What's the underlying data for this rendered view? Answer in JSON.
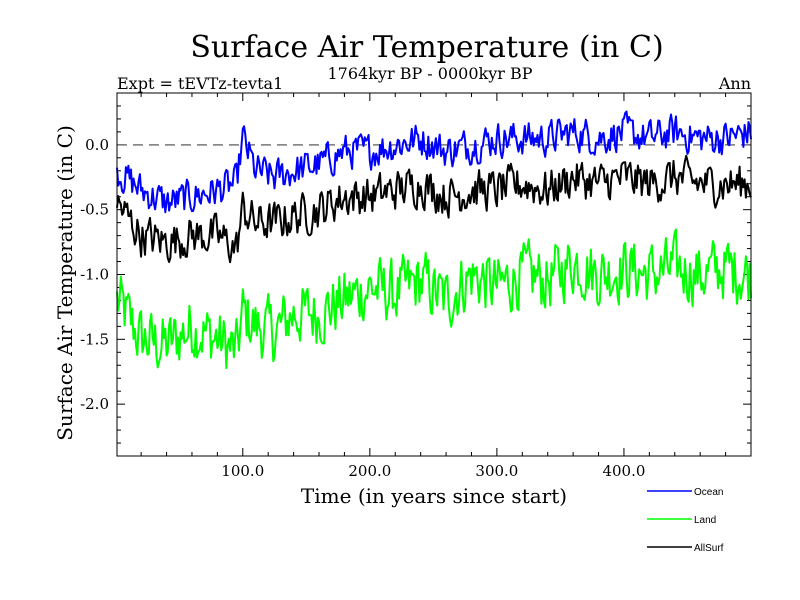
{
  "chart_data": {
    "type": "line",
    "title": "Surface Air Temperature (in C)",
    "subtitle": "1764kyr BP - 0000kyr BP",
    "expt_label": "Expt = tEVTz-tevta1",
    "season_label": "Ann",
    "xlabel": "Time (in years since start)",
    "ylabel": "Surface Air Temperature (in C)",
    "xlim": [
      1,
      500
    ],
    "ylim": [
      -2.4,
      0.4
    ],
    "x_ticks": [
      100,
      200,
      300,
      400
    ],
    "x_tick_labels": [
      "100.0",
      "200.0",
      "300.0",
      "400.0"
    ],
    "y_ticks": [
      0.0,
      -0.5,
      -1.0,
      -1.5,
      -2.0
    ],
    "y_tick_labels": [
      "0.0",
      "-0.5",
      "-1.0",
      "-1.5",
      "-2.0"
    ],
    "reference_line": 0.0,
    "x": [
      1,
      20,
      40,
      60,
      80,
      95,
      100,
      110,
      125,
      140,
      160,
      180,
      200,
      220,
      240,
      260,
      280,
      300,
      320,
      340,
      360,
      380,
      400,
      420,
      440,
      460,
      480,
      500
    ],
    "series": [
      {
        "name": "Ocean",
        "color": "#0000ff",
        "values": [
          -0.2,
          -0.35,
          -0.45,
          -0.4,
          -0.35,
          -0.3,
          0.05,
          -0.2,
          -0.25,
          -0.2,
          -0.15,
          -0.05,
          -0.05,
          0.0,
          0.05,
          -0.05,
          0.0,
          0.05,
          0.05,
          0.05,
          0.1,
          0.05,
          0.1,
          0.05,
          0.1,
          0.05,
          0.05,
          0.1
        ]
      },
      {
        "name": "Land",
        "color": "#00ff00",
        "values": [
          -1.2,
          -1.5,
          -1.55,
          -1.4,
          -1.5,
          -1.6,
          -1.3,
          -1.4,
          -1.45,
          -1.3,
          -1.3,
          -1.2,
          -1.1,
          -1.15,
          -1.05,
          -1.2,
          -1.0,
          -1.1,
          -1.0,
          -1.05,
          -0.9,
          -1.0,
          -0.95,
          -1.0,
          -0.95,
          -1.0,
          -0.95,
          -1.0
        ]
      },
      {
        "name": "AllSurf",
        "color": "#000000",
        "values": [
          -0.45,
          -0.7,
          -0.75,
          -0.7,
          -0.7,
          -0.8,
          -0.5,
          -0.6,
          -0.6,
          -0.55,
          -0.5,
          -0.4,
          -0.4,
          -0.35,
          -0.3,
          -0.4,
          -0.35,
          -0.35,
          -0.3,
          -0.35,
          -0.25,
          -0.3,
          -0.25,
          -0.3,
          -0.25,
          -0.3,
          -0.3,
          -0.3
        ]
      }
    ],
    "noise_amplitude": [
      0.12,
      0.22,
      0.14
    ]
  }
}
